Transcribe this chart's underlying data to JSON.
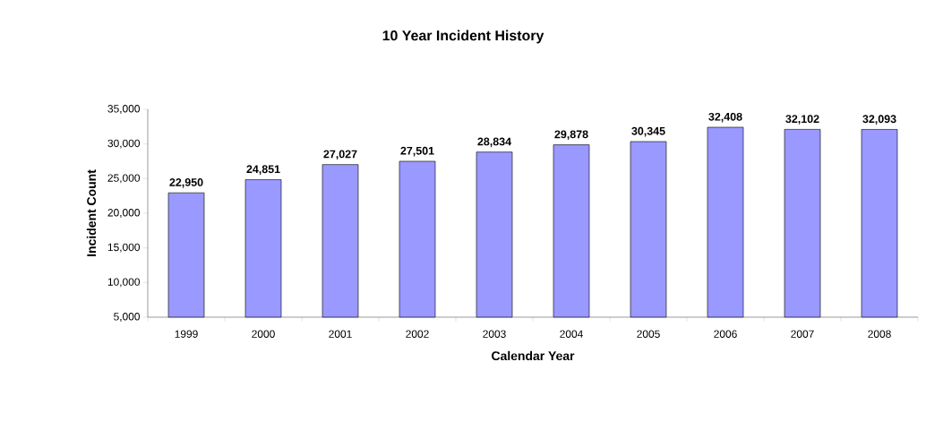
{
  "chart_data": {
    "type": "bar",
    "title": "10 Year Incident History",
    "xlabel": "Calendar Year",
    "ylabel": "Incident Count",
    "categories": [
      "1999",
      "2000",
      "2001",
      "2002",
      "2003",
      "2004",
      "2005",
      "2006",
      "2007",
      "2008"
    ],
    "values": [
      22950,
      24851,
      27027,
      27501,
      28834,
      29878,
      30345,
      32408,
      32102,
      32093
    ],
    "value_labels": [
      "22,950",
      "24,851",
      "27,027",
      "27,501",
      "28,834",
      "29,878",
      "30,345",
      "32,408",
      "32,102",
      "32,093"
    ],
    "color": "#9999ff",
    "ylim": [
      5000,
      35000
    ],
    "yticks": [
      {
        "value": 5000,
        "label": "5,000"
      },
      {
        "value": 10000,
        "label": "10,000"
      },
      {
        "value": 15000,
        "label": "15,000"
      },
      {
        "value": 20000,
        "label": "20,000"
      },
      {
        "value": 25000,
        "label": "25,000"
      },
      {
        "value": 30000,
        "label": "30,000"
      },
      {
        "value": 35000,
        "label": "35,000"
      }
    ],
    "grid": false
  }
}
